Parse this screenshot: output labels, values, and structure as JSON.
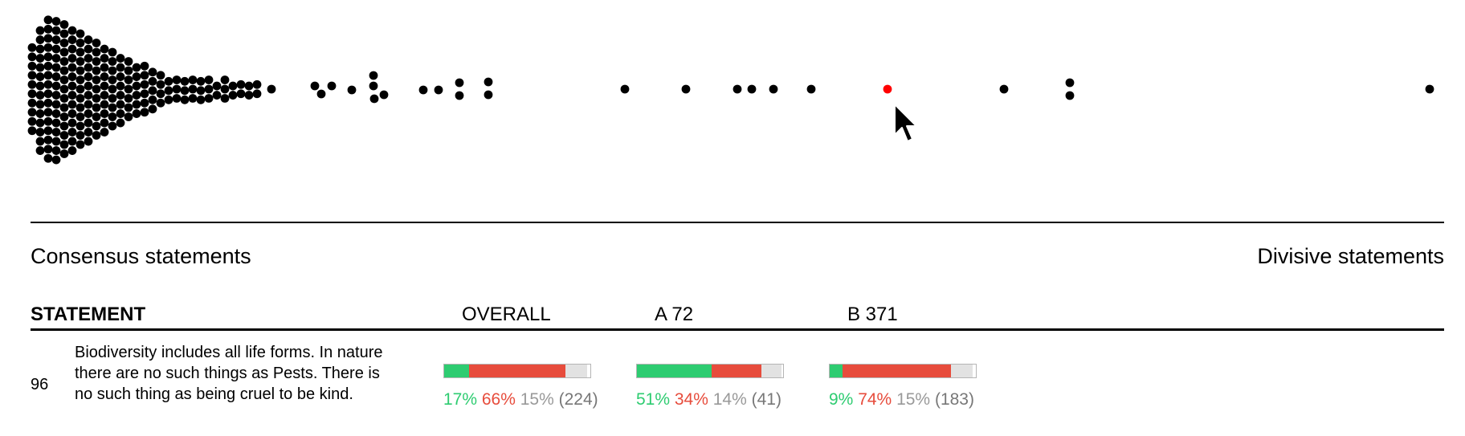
{
  "headings": {
    "consensus": "Consensus statements",
    "divisive": "Divisive statements"
  },
  "table": {
    "columns": {
      "statement": "STATEMENT",
      "overall": "OVERALL",
      "group_a": "A 72",
      "group_b": "B 371"
    },
    "rows": [
      {
        "id": "96",
        "text": "Biodiversity includes all life forms. In nature there are no such things as Pests. There is no such thing as being cruel to be kind.",
        "overall": {
          "agree": 17,
          "disagree": 66,
          "pass": 15,
          "count": "(224)",
          "agree_text": "17%",
          "disagree_text": "66%",
          "pass_text": "15%"
        },
        "group_a": {
          "agree": 51,
          "disagree": 34,
          "pass": 14,
          "count": "(41)",
          "agree_text": "51%",
          "disagree_text": "34%",
          "pass_text": "14%"
        },
        "group_b": {
          "agree": 9,
          "disagree": 74,
          "pass": 15,
          "count": "(183)",
          "agree_text": "9%",
          "disagree_text": "74%",
          "pass_text": "15%"
        }
      }
    ]
  },
  "colors": {
    "agree": "#2ecc71",
    "disagree": "#e74c3c",
    "pass": "#e2e2e2",
    "dot": "#000000",
    "selected_dot": "#ff0000"
  },
  "beeswarm": {
    "selected_statement_id": "96",
    "statement_count": 166
  }
}
